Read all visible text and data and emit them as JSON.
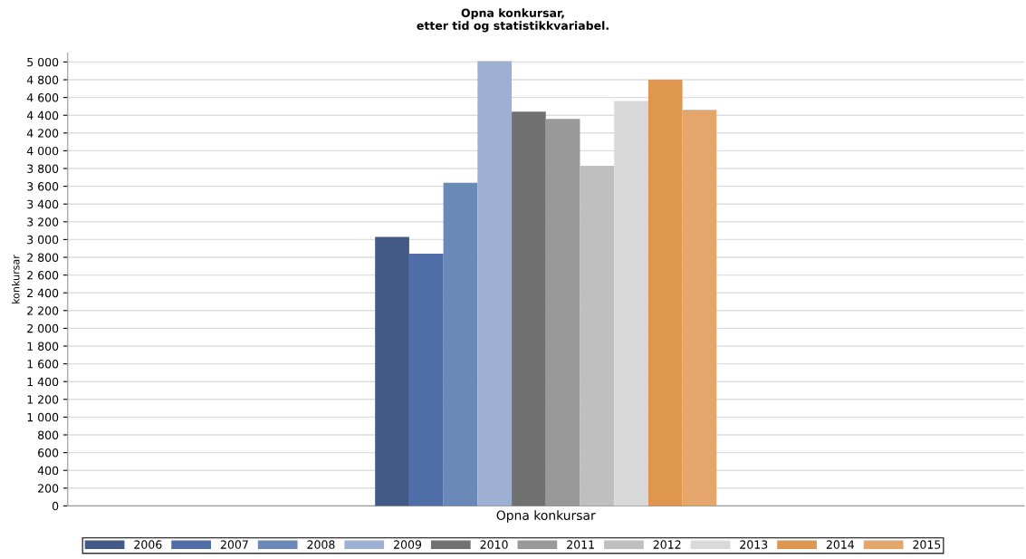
{
  "chart_data": {
    "type": "bar",
    "title": "Opna konkursar,\netter tid og statistikkvariabel.",
    "ylabel": "konkursar",
    "categories": [
      "Opna konkursar"
    ],
    "series": [
      {
        "name": "2006",
        "color": "#435a87",
        "values": [
          3030
        ]
      },
      {
        "name": "2007",
        "color": "#4f6da6",
        "values": [
          2840
        ]
      },
      {
        "name": "2008",
        "color": "#6b89b8",
        "values": [
          3640
        ]
      },
      {
        "name": "2009",
        "color": "#9db0d4",
        "values": [
          5010
        ]
      },
      {
        "name": "2010",
        "color": "#717171",
        "values": [
          4440
        ]
      },
      {
        "name": "2011",
        "color": "#999999",
        "values": [
          4360
        ]
      },
      {
        "name": "2012",
        "color": "#bfbfbf",
        "values": [
          3830
        ]
      },
      {
        "name": "2013",
        "color": "#d9d9d9",
        "values": [
          4560
        ]
      },
      {
        "name": "2014",
        "color": "#df964e",
        "values": [
          4800
        ]
      },
      {
        "name": "2015",
        "color": "#e4a66a",
        "values": [
          4460
        ]
      }
    ],
    "ylim": [
      0,
      5100
    ],
    "yticks": [
      0,
      200,
      400,
      600,
      800,
      {
        "value": 1000,
        "label": "1 000"
      },
      {
        "value": 1200,
        "label": "1 200"
      },
      {
        "value": 1400,
        "label": "1 400"
      },
      {
        "value": 1600,
        "label": "1 600"
      },
      {
        "value": 1800,
        "label": "1 800"
      },
      {
        "value": 2000,
        "label": "2 000"
      },
      {
        "value": 2200,
        "label": "2 200"
      },
      {
        "value": 2400,
        "label": "2 400"
      },
      {
        "value": 2600,
        "label": "2 600"
      },
      {
        "value": 2800,
        "label": "2 800"
      },
      {
        "value": 3000,
        "label": "3 000"
      },
      {
        "value": 3200,
        "label": "3 200"
      },
      {
        "value": 3400,
        "label": "3 400"
      },
      {
        "value": 3600,
        "label": "3 600"
      },
      {
        "value": 3800,
        "label": "3 800"
      },
      {
        "value": 4000,
        "label": "4 000"
      },
      {
        "value": 4200,
        "label": "4 200"
      },
      {
        "value": 4400,
        "label": "4 400"
      },
      {
        "value": 4600,
        "label": "4 600"
      },
      {
        "value": 4800,
        "label": "4 800"
      },
      {
        "value": 5000,
        "label": "5 000"
      }
    ],
    "grid": "y",
    "legend": "bottom"
  }
}
